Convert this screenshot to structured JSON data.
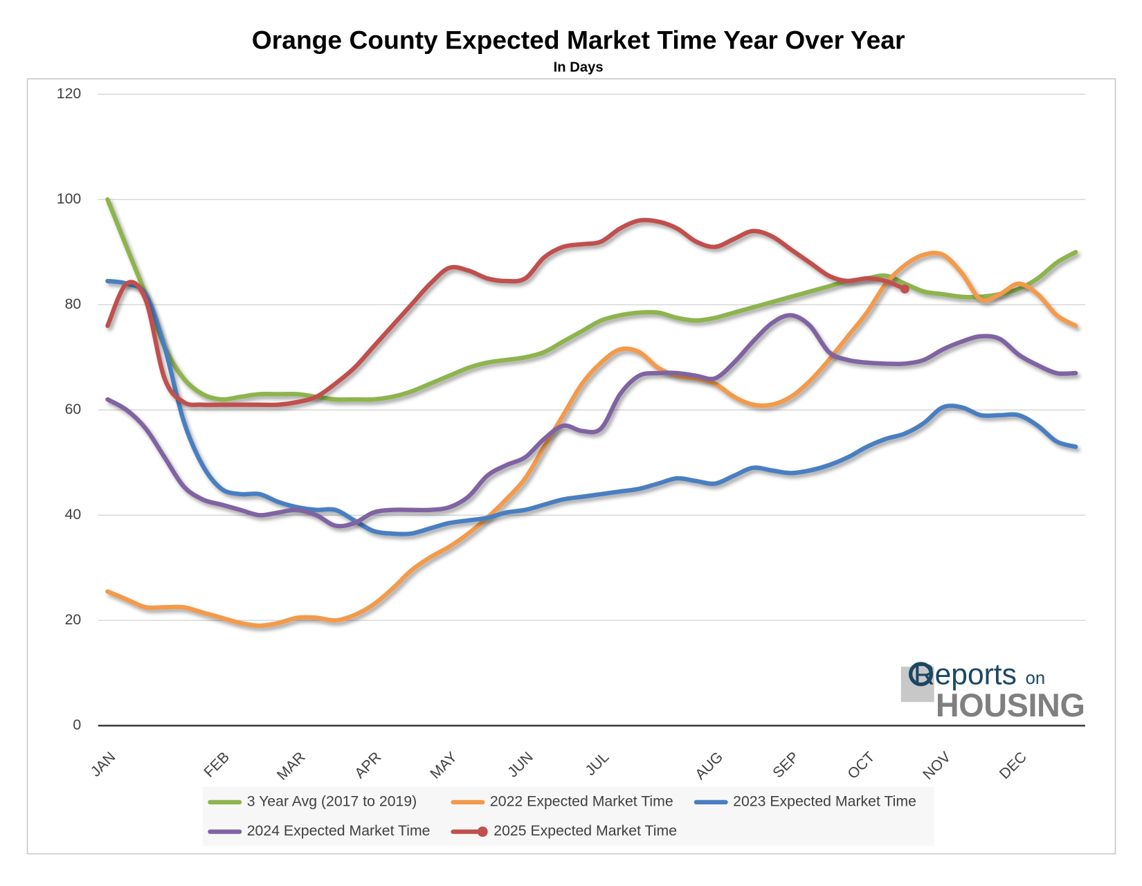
{
  "chart_data": {
    "type": "line",
    "title": "Orange County Expected Market Time Year Over Year",
    "subtitle": "In Days",
    "categories": [
      "JAN",
      null,
      null,
      null,
      null,
      null,
      "FEB",
      null,
      null,
      null,
      "MAR",
      null,
      null,
      null,
      "APR",
      null,
      null,
      null,
      "MAY",
      null,
      null,
      null,
      "JUN",
      null,
      null,
      null,
      "JUL",
      null,
      null,
      null,
      null,
      null,
      "AUG",
      null,
      null,
      null,
      "SEP",
      null,
      null,
      null,
      "OCT",
      null,
      null,
      null,
      "NOV",
      null,
      null,
      null,
      "DEC",
      null,
      null,
      null
    ],
    "series": [
      {
        "name": "3 Year Avg (2017 to 2019)",
        "color": "#8db44e",
        "values": [
          100,
          91,
          82,
          72,
          66,
          63,
          62,
          62.5,
          63,
          63,
          63,
          62.5,
          62,
          62,
          62,
          62.5,
          63.5,
          65,
          66.5,
          68,
          69,
          69.5,
          70,
          71,
          73,
          75,
          77,
          78,
          78.5,
          78.5,
          77.5,
          77,
          77.5,
          78.5,
          79.5,
          80.5,
          81.5,
          82.5,
          83.5,
          84.5,
          85,
          85.5,
          84,
          82.5,
          82,
          81.5,
          81.5,
          82,
          83,
          85,
          88,
          90
        ]
      },
      {
        "name": "2022 Expected Market Time",
        "color": "#f39a4b",
        "values": [
          25.5,
          24,
          22.5,
          22.5,
          22.5,
          21.5,
          20.5,
          19.5,
          19,
          19.5,
          20.5,
          20.5,
          20,
          21,
          23,
          26,
          29.5,
          32,
          34,
          36.5,
          39.5,
          43,
          47,
          53,
          59,
          65,
          69,
          71.5,
          71,
          68,
          66.5,
          66,
          65,
          62.5,
          61,
          61,
          62.5,
          65.5,
          69.5,
          74,
          78.5,
          84,
          87.5,
          89.5,
          89.5,
          86,
          81,
          82,
          84,
          82,
          78,
          76
        ]
      },
      {
        "name": "2023 Expected Market Time",
        "color": "#4a7fc1",
        "values": [
          84.5,
          84,
          82,
          72,
          58,
          49.5,
          45,
          44,
          44,
          42.5,
          41.5,
          41,
          41,
          39,
          37,
          36.5,
          36.5,
          37.5,
          38.5,
          39,
          39.5,
          40.5,
          41,
          42,
          43,
          43.5,
          44,
          44.5,
          45,
          46,
          47,
          46.5,
          46,
          47.5,
          49,
          48.5,
          48,
          48.5,
          49.5,
          51,
          53,
          54.5,
          55.5,
          57.5,
          60.5,
          60.5,
          59,
          59,
          59,
          57,
          54,
          53
        ]
      },
      {
        "name": "2024 Expected Market Time",
        "color": "#8064a2",
        "values": [
          62,
          60,
          56.5,
          51,
          45.5,
          43,
          42,
          41,
          40,
          40.5,
          41,
          40,
          38,
          38.5,
          40.5,
          41,
          41,
          41,
          41.5,
          43.5,
          47.5,
          49.5,
          51,
          54.5,
          57,
          56,
          56.5,
          63,
          66.5,
          67,
          67,
          66.5,
          66,
          69,
          73,
          76.5,
          78,
          76,
          71,
          69.5,
          69,
          68.8,
          68.8,
          69.5,
          71.5,
          73,
          74,
          73.5,
          70.5,
          68.5,
          67,
          67
        ]
      },
      {
        "name": "2025 Expected Market Time",
        "color": "#c0504d",
        "marker": true,
        "values": [
          76,
          84,
          81,
          66,
          61.5,
          61,
          61,
          61,
          61,
          61,
          61.5,
          62.5,
          65,
          68,
          72,
          76,
          80,
          84,
          87,
          86.5,
          85,
          84.5,
          85,
          89,
          91,
          91.5,
          92,
          94.5,
          96,
          95.8,
          94.5,
          92,
          91,
          92.5,
          94,
          93,
          90.5,
          88,
          85.5,
          84.5,
          85,
          84.5,
          83,
          null,
          null,
          null,
          null,
          null,
          null,
          null,
          null,
          null
        ]
      }
    ],
    "ylim": [
      0,
      120
    ],
    "yticks": [
      0,
      20,
      40,
      60,
      80,
      100,
      120
    ],
    "grid": true,
    "logo": {
      "main": "Reports",
      "small": "on",
      "sub": "HOUSING"
    }
  }
}
